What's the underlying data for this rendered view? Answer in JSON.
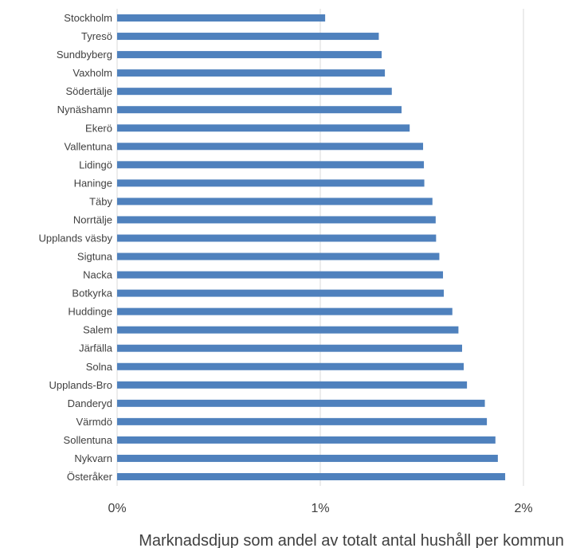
{
  "chart_data": {
    "type": "bar",
    "orientation": "horizontal",
    "categories": [
      "Stockholm",
      "Tyresö",
      "Sundbyberg",
      "Vaxholm",
      "Södertälje",
      "Nynäshamn",
      "Ekerö",
      "Vallentuna",
      "Lidingö",
      "Haninge",
      "Täby",
      "Norrtälje",
      "Upplands väsby",
      "Sigtuna",
      "Nacka",
      "Botkyrka",
      "Huddinge",
      "Salem",
      "Järfälla",
      "Solna",
      "Upplands-Bro",
      "Danderyd",
      "Värmdö",
      "Sollentuna",
      "Nykvarn",
      "Österåker"
    ],
    "values": [
      1.024,
      1.288,
      1.302,
      1.318,
      1.352,
      1.4,
      1.44,
      1.506,
      1.51,
      1.512,
      1.552,
      1.568,
      1.57,
      1.586,
      1.604,
      1.608,
      1.65,
      1.68,
      1.698,
      1.706,
      1.722,
      1.81,
      1.82,
      1.862,
      1.874,
      1.91
    ],
    "unit": "%",
    "xlim": [
      0,
      2
    ],
    "xticks": [
      0,
      1,
      2
    ],
    "xtick_labels": [
      "0%",
      "1%",
      "2%"
    ],
    "xlabel": "Marknadsdjup som andel av totalt antal hushåll per kommun",
    "grid": "vertical",
    "legend": "none",
    "bar_color": "#4F81BD",
    "grid_color": "#D9D9D9"
  }
}
